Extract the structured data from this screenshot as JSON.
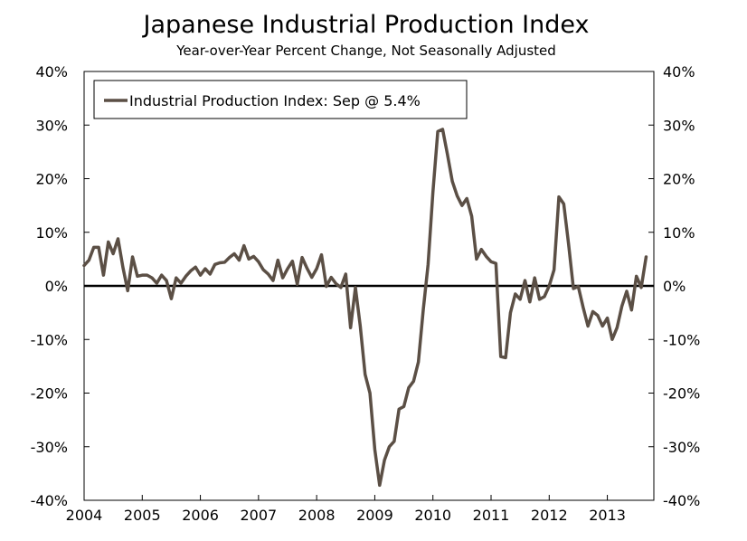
{
  "chart_data": {
    "type": "line",
    "title": "Japanese Industrial Production Index",
    "subtitle": "Year-over-Year Percent Change, Not Seasonally Adjusted",
    "xlabel": "",
    "ylabel": "",
    "ylim": [
      -40,
      40
    ],
    "xlim": [
      2004,
      2014
    ],
    "y_ticks": [
      {
        "value": 40,
        "label": "40%"
      },
      {
        "value": 30,
        "label": "30%"
      },
      {
        "value": 20,
        "label": "20%"
      },
      {
        "value": 10,
        "label": "10%"
      },
      {
        "value": 0,
        "label": "0%"
      },
      {
        "value": -10,
        "label": "-10%"
      },
      {
        "value": -20,
        "label": "-20%"
      },
      {
        "value": -30,
        "label": "-30%"
      },
      {
        "value": -40,
        "label": "-40%"
      }
    ],
    "x_ticks": [
      {
        "value": 2004,
        "label": "2004"
      },
      {
        "value": 2005,
        "label": "2005"
      },
      {
        "value": 2006,
        "label": "2006"
      },
      {
        "value": 2007,
        "label": "2007"
      },
      {
        "value": 2008,
        "label": "2008"
      },
      {
        "value": 2009,
        "label": "2009"
      },
      {
        "value": 2010,
        "label": "2010"
      },
      {
        "value": 2011,
        "label": "2011"
      },
      {
        "value": 2012,
        "label": "2012"
      },
      {
        "value": 2013,
        "label": "2013"
      }
    ],
    "legend_position": "top-left",
    "zero_line": true,
    "series": [
      {
        "name": "Industrial Production Index: Sep @ 5.4%",
        "color": "#5b4f45",
        "start": 2004.0,
        "step_months": 1,
        "values": [
          3.8,
          4.8,
          7.2,
          7.2,
          2.0,
          8.2,
          6.0,
          8.8,
          3.5,
          -0.9,
          5.4,
          1.8,
          2.0,
          2.0,
          1.5,
          0.5,
          2.0,
          1.0,
          -2.4,
          1.5,
          0.5,
          1.8,
          2.8,
          3.5,
          2.0,
          3.2,
          2.2,
          4.0,
          4.3,
          4.4,
          5.3,
          6.0,
          4.8,
          7.5,
          5.0,
          5.5,
          4.5,
          3.0,
          2.2,
          1.0,
          4.8,
          1.5,
          3.2,
          4.6,
          0.3,
          5.3,
          3.3,
          1.6,
          3.2,
          5.8,
          -0.1,
          1.6,
          0.4,
          -0.3,
          2.2,
          -7.8,
          -0.3,
          -7.5,
          -16.5,
          -20.0,
          -30.5,
          -37.2,
          -32.5,
          -30.0,
          -29.0,
          -23.0,
          -22.5,
          -19.0,
          -17.8,
          -14.2,
          -4.5,
          4.0,
          17.5,
          28.8,
          29.2,
          24.5,
          19.5,
          16.8,
          15.0,
          16.3,
          13.0,
          5.0,
          6.8,
          5.5,
          4.5,
          4.2,
          -13.2,
          -13.4,
          -5.0,
          -1.5,
          -2.5,
          1.0,
          -3.0,
          1.5,
          -2.5,
          -2.0,
          0.0,
          3.0,
          16.6,
          15.3,
          7.8,
          -0.5,
          -0.1,
          -4.0,
          -7.5,
          -4.8,
          -5.5,
          -7.5,
          -6.0,
          -10.0,
          -7.8,
          -3.8,
          -1.0,
          -4.5,
          1.8,
          -0.3,
          5.4
        ]
      }
    ]
  }
}
